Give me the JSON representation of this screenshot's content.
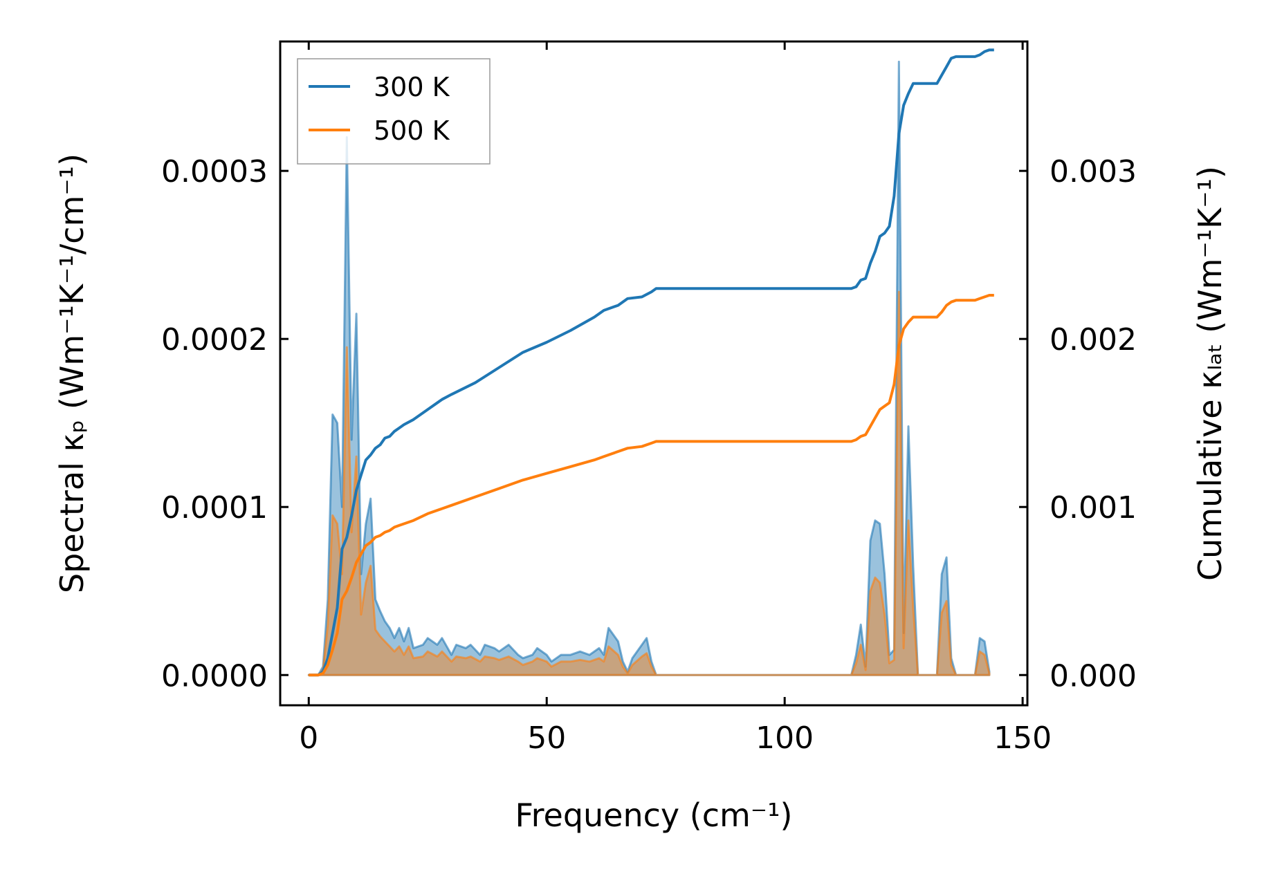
{
  "chart_data": {
    "type": "area",
    "title": "",
    "xlabel": "Frequency (cm⁻¹)",
    "ylabel_left": "Spectral κₚ (Wm⁻¹K⁻¹/cm⁻¹)",
    "ylabel_right": "Cumulative κₗₐₜ (Wm⁻¹K⁻¹)",
    "xlim": [
      -6,
      151
    ],
    "ylim_left": [
      -1.8e-05,
      0.000377
    ],
    "ylim_right": [
      -0.00018,
      0.00377
    ],
    "x_ticks": [
      0,
      50,
      100,
      150
    ],
    "x_tick_labels": [
      "0",
      "50",
      "100",
      "150"
    ],
    "y_left_ticks": [
      0,
      0.0001,
      0.0002,
      0.0003
    ],
    "y_left_tick_labels": [
      "0.0000",
      "0.0001",
      "0.0002",
      "0.0003"
    ],
    "y_right_ticks": [
      0,
      0.001,
      0.002,
      0.003
    ],
    "y_right_tick_labels": [
      "0.000",
      "0.001",
      "0.002",
      "0.003"
    ],
    "legend": {
      "position": "top-left",
      "entries": [
        {
          "label": "300 K",
          "color": "#1f77b4"
        },
        {
          "label": "500 K",
          "color": "#ff7f0e"
        }
      ]
    },
    "series": [
      {
        "name": "300 K",
        "color": "#1f77b4",
        "spectral": [
          [
            0,
            0
          ],
          [
            1,
            0
          ],
          [
            2,
            0
          ],
          [
            3,
            5e-06
          ],
          [
            4,
            4.5e-05
          ],
          [
            5,
            0.000155
          ],
          [
            6,
            0.00015
          ],
          [
            7,
            0.0001
          ],
          [
            8,
            0.00032
          ],
          [
            9,
            0.00014
          ],
          [
            10,
            0.000215
          ],
          [
            11,
            6e-05
          ],
          [
            12,
            9e-05
          ],
          [
            13,
            0.000105
          ],
          [
            14,
            4.5e-05
          ],
          [
            15,
            3.8e-05
          ],
          [
            16,
            3.2e-05
          ],
          [
            17,
            2.8e-05
          ],
          [
            18,
            2.2e-05
          ],
          [
            19,
            2.8e-05
          ],
          [
            20,
            2e-05
          ],
          [
            21,
            2.8e-05
          ],
          [
            22,
            1.6e-05
          ],
          [
            24,
            1.8e-05
          ],
          [
            25,
            2.2e-05
          ],
          [
            27,
            1.8e-05
          ],
          [
            28,
            2.2e-05
          ],
          [
            30,
            1.2e-05
          ],
          [
            31,
            1.8e-05
          ],
          [
            33,
            1.6e-05
          ],
          [
            34,
            1.8e-05
          ],
          [
            36,
            1.2e-05
          ],
          [
            37,
            1.8e-05
          ],
          [
            39,
            1.6e-05
          ],
          [
            40,
            1.4e-05
          ],
          [
            42,
            1.8e-05
          ],
          [
            44,
            1.2e-05
          ],
          [
            45,
            1e-05
          ],
          [
            47,
            1.2e-05
          ],
          [
            48,
            1.6e-05
          ],
          [
            50,
            1.2e-05
          ],
          [
            51,
            8e-06
          ],
          [
            53,
            1.2e-05
          ],
          [
            55,
            1.2e-05
          ],
          [
            57,
            1.4e-05
          ],
          [
            59,
            1.2e-05
          ],
          [
            61,
            1.6e-05
          ],
          [
            62,
            1.2e-05
          ],
          [
            63,
            2.8e-05
          ],
          [
            65,
            2e-05
          ],
          [
            66,
            8e-06
          ],
          [
            67,
            2e-06
          ],
          [
            68,
            1e-05
          ],
          [
            70,
            1.8e-05
          ],
          [
            71,
            2.2e-05
          ],
          [
            72,
            8e-06
          ],
          [
            73,
            0
          ],
          [
            80,
            0
          ],
          [
            90,
            0
          ],
          [
            100,
            0
          ],
          [
            110,
            0
          ],
          [
            114,
            0
          ],
          [
            115,
            1.2e-05
          ],
          [
            116,
            3e-05
          ],
          [
            117,
            5e-06
          ],
          [
            118,
            8e-05
          ],
          [
            119,
            9.2e-05
          ],
          [
            120,
            9e-05
          ],
          [
            121,
            6e-05
          ],
          [
            122,
            1.2e-05
          ],
          [
            123,
            1.5e-05
          ],
          [
            124,
            0.000365
          ],
          [
            125,
            2.5e-05
          ],
          [
            126,
            0.000148
          ],
          [
            127,
            6.5e-05
          ],
          [
            128,
            0
          ],
          [
            132,
            0
          ],
          [
            133,
            6e-05
          ],
          [
            134,
            7e-05
          ],
          [
            135,
            1e-05
          ],
          [
            136,
            0
          ],
          [
            140,
            0
          ],
          [
            141,
            2.2e-05
          ],
          [
            142,
            2e-05
          ],
          [
            143,
            2e-06
          ]
        ],
        "cumulative": [
          [
            0,
            0
          ],
          [
            1,
            0
          ],
          [
            2,
            0
          ],
          [
            3,
            2e-05
          ],
          [
            4,
            0.0001
          ],
          [
            5,
            0.00025
          ],
          [
            6,
            0.0004
          ],
          [
            7,
            0.00075
          ],
          [
            8,
            0.00082
          ],
          [
            9,
            0.00095
          ],
          [
            10,
            0.0011
          ],
          [
            11,
            0.00119
          ],
          [
            12,
            0.00128
          ],
          [
            13,
            0.00131
          ],
          [
            14,
            0.00135
          ],
          [
            15,
            0.00137
          ],
          [
            16,
            0.00141
          ],
          [
            17,
            0.00142
          ],
          [
            18,
            0.00145
          ],
          [
            19,
            0.00147
          ],
          [
            20,
            0.00149
          ],
          [
            22,
            0.00152
          ],
          [
            25,
            0.00158
          ],
          [
            28,
            0.00164
          ],
          [
            30,
            0.00167
          ],
          [
            35,
            0.00174
          ],
          [
            40,
            0.00183
          ],
          [
            45,
            0.00192
          ],
          [
            50,
            0.00198
          ],
          [
            55,
            0.00205
          ],
          [
            60,
            0.00213
          ],
          [
            62,
            0.00217
          ],
          [
            65,
            0.0022
          ],
          [
            67,
            0.00224
          ],
          [
            70,
            0.00225
          ],
          [
            72,
            0.00228
          ],
          [
            73,
            0.0023
          ],
          [
            80,
            0.0023
          ],
          [
            100,
            0.0023
          ],
          [
            114,
            0.0023
          ],
          [
            115,
            0.00231
          ],
          [
            116,
            0.00235
          ],
          [
            117,
            0.00236
          ],
          [
            118,
            0.00245
          ],
          [
            119,
            0.00252
          ],
          [
            120,
            0.00261
          ],
          [
            121,
            0.00263
          ],
          [
            122,
            0.00267
          ],
          [
            123,
            0.00285
          ],
          [
            124,
            0.00322
          ],
          [
            125,
            0.00339
          ],
          [
            126,
            0.00346
          ],
          [
            127,
            0.00352
          ],
          [
            132,
            0.00352
          ],
          [
            133,
            0.00357
          ],
          [
            134,
            0.00362
          ],
          [
            135,
            0.00367
          ],
          [
            136,
            0.00368
          ],
          [
            140,
            0.00368
          ],
          [
            141,
            0.00369
          ],
          [
            142,
            0.00371
          ],
          [
            143,
            0.00372
          ],
          [
            144,
            0.00372
          ]
        ]
      },
      {
        "name": "500 K",
        "color": "#ff7f0e",
        "spectral": [
          [
            0,
            0
          ],
          [
            1,
            0
          ],
          [
            2,
            0
          ],
          [
            3,
            3e-06
          ],
          [
            4,
            3e-05
          ],
          [
            5,
            9.5e-05
          ],
          [
            6,
            9e-05
          ],
          [
            7,
            6e-05
          ],
          [
            8,
            0.000195
          ],
          [
            9,
            8.5e-05
          ],
          [
            10,
            0.00013
          ],
          [
            11,
            3.6e-05
          ],
          [
            12,
            5.5e-05
          ],
          [
            13,
            6.5e-05
          ],
          [
            14,
            2.7e-05
          ],
          [
            15,
            2.3e-05
          ],
          [
            16,
            2e-05
          ],
          [
            17,
            1.7e-05
          ],
          [
            18,
            1.4e-05
          ],
          [
            19,
            1.7e-05
          ],
          [
            20,
            1.2e-05
          ],
          [
            21,
            1.7e-05
          ],
          [
            22,
            1e-05
          ],
          [
            24,
            1.1e-05
          ],
          [
            25,
            1.4e-05
          ],
          [
            27,
            1.1e-05
          ],
          [
            28,
            1.4e-05
          ],
          [
            30,
            8e-06
          ],
          [
            31,
            1.1e-05
          ],
          [
            33,
            1e-05
          ],
          [
            34,
            1.1e-05
          ],
          [
            36,
            8e-06
          ],
          [
            37,
            1.1e-05
          ],
          [
            39,
            1e-05
          ],
          [
            40,
            9e-06
          ],
          [
            42,
            1.1e-05
          ],
          [
            44,
            8e-06
          ],
          [
            45,
            6e-06
          ],
          [
            47,
            8e-06
          ],
          [
            48,
            1e-05
          ],
          [
            50,
            8e-06
          ],
          [
            51,
            5e-06
          ],
          [
            53,
            8e-06
          ],
          [
            55,
            8e-06
          ],
          [
            57,
            9e-06
          ],
          [
            59,
            8e-06
          ],
          [
            61,
            1e-05
          ],
          [
            62,
            8e-06
          ],
          [
            63,
            1.7e-05
          ],
          [
            65,
            1.2e-05
          ],
          [
            66,
            5e-06
          ],
          [
            67,
            1e-06
          ],
          [
            68,
            6e-06
          ],
          [
            70,
            1.1e-05
          ],
          [
            71,
            1.3e-05
          ],
          [
            72,
            5e-06
          ],
          [
            73,
            0
          ],
          [
            80,
            0
          ],
          [
            90,
            0
          ],
          [
            100,
            0
          ],
          [
            110,
            0
          ],
          [
            114,
            0
          ],
          [
            115,
            7e-06
          ],
          [
            116,
            1.8e-05
          ],
          [
            117,
            3e-06
          ],
          [
            118,
            5e-05
          ],
          [
            119,
            5.8e-05
          ],
          [
            120,
            5.5e-05
          ],
          [
            121,
            3.6e-05
          ],
          [
            122,
            7e-06
          ],
          [
            123,
            9e-06
          ],
          [
            124,
            0.000228
          ],
          [
            125,
            1.6e-05
          ],
          [
            126,
            9.2e-05
          ],
          [
            127,
            4e-05
          ],
          [
            128,
            0
          ],
          [
            132,
            0
          ],
          [
            133,
            3.7e-05
          ],
          [
            134,
            4.4e-05
          ],
          [
            135,
            6e-06
          ],
          [
            136,
            0
          ],
          [
            140,
            0
          ],
          [
            141,
            1.4e-05
          ],
          [
            142,
            1.2e-05
          ],
          [
            143,
            1e-06
          ]
        ],
        "cumulative": [
          [
            0,
            0
          ],
          [
            1,
            0
          ],
          [
            2,
            0
          ],
          [
            3,
            1e-05
          ],
          [
            4,
            6e-05
          ],
          [
            5,
            0.00015
          ],
          [
            6,
            0.00025
          ],
          [
            7,
            0.00045
          ],
          [
            8,
            0.0005
          ],
          [
            9,
            0.00058
          ],
          [
            10,
            0.00067
          ],
          [
            11,
            0.00072
          ],
          [
            12,
            0.00077
          ],
          [
            13,
            0.00079
          ],
          [
            14,
            0.00082
          ],
          [
            15,
            0.00083
          ],
          [
            16,
            0.00085
          ],
          [
            17,
            0.00086
          ],
          [
            18,
            0.00088
          ],
          [
            19,
            0.00089
          ],
          [
            20,
            0.0009
          ],
          [
            22,
            0.00092
          ],
          [
            25,
            0.00096
          ],
          [
            28,
            0.00099
          ],
          [
            30,
            0.00101
          ],
          [
            35,
            0.00106
          ],
          [
            40,
            0.00111
          ],
          [
            45,
            0.00116
          ],
          [
            50,
            0.0012
          ],
          [
            55,
            0.00124
          ],
          [
            60,
            0.00128
          ],
          [
            62,
            0.0013
          ],
          [
            65,
            0.00133
          ],
          [
            67,
            0.00135
          ],
          [
            70,
            0.00136
          ],
          [
            72,
            0.00138
          ],
          [
            73,
            0.00139
          ],
          [
            80,
            0.00139
          ],
          [
            100,
            0.00139
          ],
          [
            114,
            0.00139
          ],
          [
            115,
            0.0014
          ],
          [
            116,
            0.00142
          ],
          [
            117,
            0.00143
          ],
          [
            118,
            0.00148
          ],
          [
            119,
            0.00153
          ],
          [
            120,
            0.00158
          ],
          [
            121,
            0.0016
          ],
          [
            122,
            0.00162
          ],
          [
            123,
            0.00173
          ],
          [
            124,
            0.00196
          ],
          [
            125,
            0.00206
          ],
          [
            126,
            0.0021
          ],
          [
            127,
            0.00213
          ],
          [
            132,
            0.00213
          ],
          [
            133,
            0.00216
          ],
          [
            134,
            0.0022
          ],
          [
            135,
            0.00222
          ],
          [
            136,
            0.00223
          ],
          [
            140,
            0.00223
          ],
          [
            141,
            0.00224
          ],
          [
            142,
            0.00225
          ],
          [
            143,
            0.00226
          ],
          [
            144,
            0.00226
          ]
        ]
      }
    ]
  }
}
